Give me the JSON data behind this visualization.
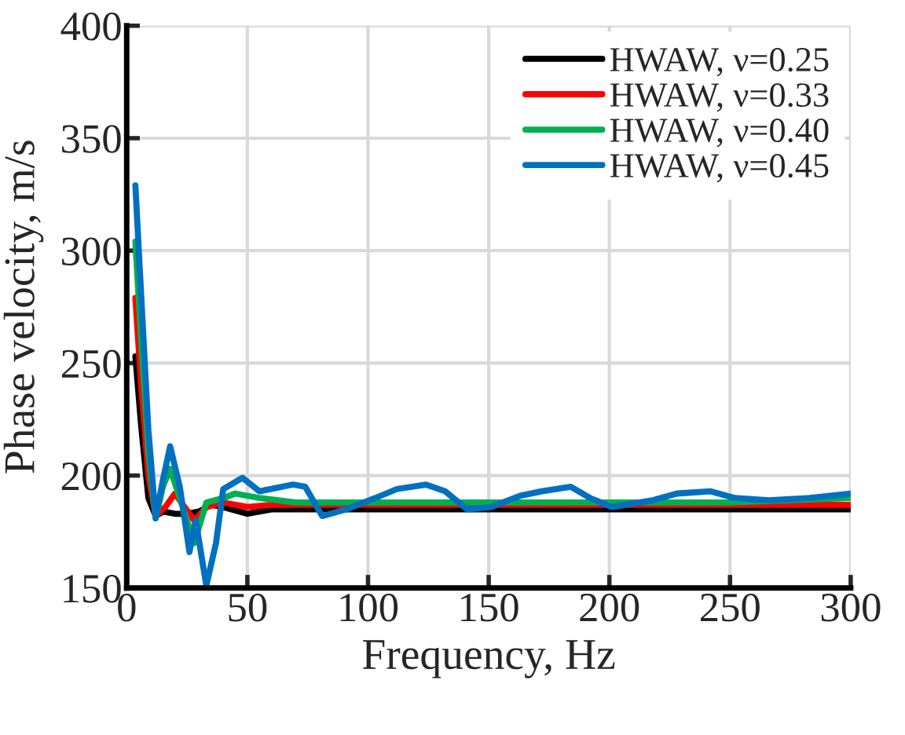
{
  "chart_data": {
    "type": "line",
    "xlabel": "Frequency, Hz",
    "ylabel": "Phase velocity, m/s",
    "xlim": [
      0,
      300
    ],
    "xticks": [
      0,
      50,
      100,
      150,
      200,
      250,
      300
    ],
    "ylim": [
      150,
      400
    ],
    "yticks": [
      150,
      200,
      250,
      300,
      350,
      400
    ],
    "grid": true,
    "legend": "top right",
    "marker": "none",
    "line_style": "solid",
    "series": [
      {
        "name": "HWAW, ν=0.25",
        "color": "#000000",
        "x": [
          3.6,
          6,
          9,
          12,
          15,
          20,
          25,
          30,
          35,
          40,
          50,
          60,
          80,
          100,
          150,
          200,
          250,
          300
        ],
        "values": [
          253,
          222,
          190,
          182,
          184,
          183,
          183,
          184,
          187,
          186,
          183,
          185,
          185,
          185,
          185,
          185,
          185,
          185
        ]
      },
      {
        "name": "HWAW, ν=0.33",
        "color": "#ff0000",
        "x": [
          3.6,
          6,
          9,
          12,
          16,
          20,
          24,
          28,
          33,
          40,
          50,
          60,
          80,
          100,
          150,
          200,
          250,
          300
        ],
        "values": [
          279,
          240,
          200,
          182,
          186,
          192,
          186,
          180,
          186,
          188,
          186,
          187,
          187,
          187,
          187,
          187,
          187,
          187
        ]
      },
      {
        "name": "HWAW, ν=0.40",
        "color": "#00b050",
        "x": [
          3.6,
          6,
          9,
          12,
          15,
          18,
          22,
          28,
          33,
          40,
          45,
          55,
          70,
          100,
          150,
          200,
          250,
          300
        ],
        "values": [
          304,
          260,
          210,
          181,
          195,
          203,
          190,
          170,
          188,
          190,
          192,
          190,
          188,
          188,
          188,
          188,
          188,
          190
        ]
      },
      {
        "name": "HWAW, ν=0.45",
        "color": "#0070c0",
        "x": [
          3.6,
          6,
          9,
          12,
          15,
          18,
          22,
          26,
          28.6,
          33,
          37,
          40,
          48,
          55,
          69,
          74,
          81,
          91,
          103,
          112,
          124,
          132,
          141,
          151,
          163,
          172,
          184,
          192,
          201,
          218,
          228,
          242,
          252,
          266,
          283,
          300
        ],
        "values": [
          329,
          280,
          220,
          181,
          198,
          213,
          195,
          166,
          180,
          151,
          170,
          194,
          199,
          193,
          196,
          195,
          182,
          185,
          190,
          194,
          196,
          193,
          185,
          186,
          191,
          193,
          195,
          190,
          186,
          189,
          192,
          193,
          190,
          189,
          190,
          192
        ]
      }
    ]
  }
}
